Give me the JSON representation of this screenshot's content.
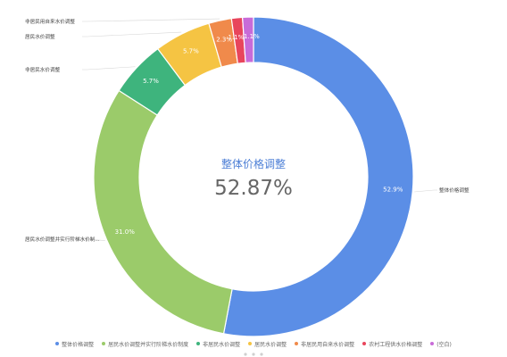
{
  "chart_data": {
    "type": "pie",
    "style": "donut",
    "series": [
      {
        "name": "整体价格调整",
        "value": 52.87,
        "label": "52.9%",
        "color": "#5b8ee6"
      },
      {
        "name": "居民水价调整并实行阶梯水价制度",
        "value": 31.0,
        "label": "31.0%",
        "color": "#9bcb6a"
      },
      {
        "name": "非居民水价调整",
        "value": 5.7,
        "label": "5.7%",
        "color": "#3eb47d"
      },
      {
        "name": "居民水价调整",
        "value": 5.7,
        "label": "5.7%",
        "color": "#f5c443"
      },
      {
        "name": "非居民用自来水价调整",
        "value": 2.3,
        "label": "2.3%",
        "color": "#f08a4b"
      },
      {
        "name": "农村工程供水价格调整",
        "value": 1.1,
        "label": "1.1%",
        "color": "#e8455c"
      },
      {
        "name": "(空白)",
        "value": 1.1,
        "label": "1.1%",
        "color": "#c86bd8"
      }
    ],
    "callouts": [
      "整体价格调整",
      "居民水价调整并实行阶梯水价制...",
      "非居民水价调整",
      "居民水价调整",
      "非居民用自来水价调整"
    ],
    "center": {
      "title": "整体价格调整",
      "value": "52.87%"
    },
    "legend_position": "bottom"
  }
}
